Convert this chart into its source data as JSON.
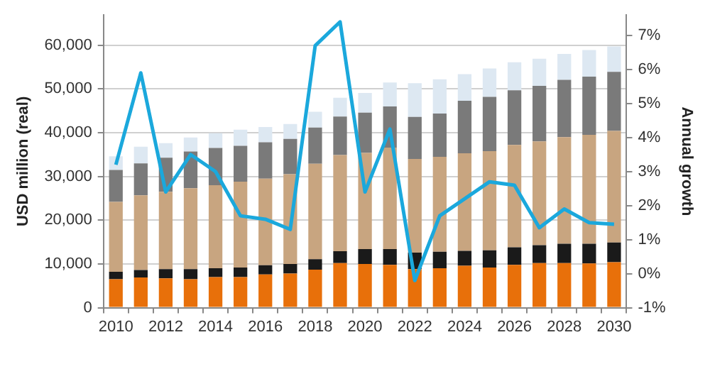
{
  "chart_data": {
    "type": "bar",
    "stacked": true,
    "ylabel": "USD million (real)",
    "y2label": "Annual growth",
    "categories": [
      "2010",
      null,
      "2012",
      null,
      "2014",
      null,
      "2016",
      null,
      "2018",
      null,
      "2020",
      null,
      "2022",
      null,
      "2024",
      null,
      "2026",
      null,
      "2028",
      null,
      "2030"
    ],
    "ylim": [
      0,
      66900
    ],
    "yticks": [
      {
        "value": 0,
        "label": "0"
      },
      {
        "value": 10000,
        "label": "10,000"
      },
      {
        "value": 20000,
        "label": "20,000"
      },
      {
        "value": 30000,
        "label": "30,000"
      },
      {
        "value": 40000,
        "label": "40,000"
      },
      {
        "value": 50000,
        "label": "50,000"
      },
      {
        "value": 60000,
        "label": "60,000"
      }
    ],
    "y2lim": [
      -1,
      7.6
    ],
    "y2ticks": [
      {
        "value": -1,
        "label": "-1%"
      },
      {
        "value": 0,
        "label": "0%"
      },
      {
        "value": 1,
        "label": "1%"
      },
      {
        "value": 2,
        "label": "2%"
      },
      {
        "value": 3,
        "label": "3%"
      },
      {
        "value": 4,
        "label": "4%"
      },
      {
        "value": 5,
        "label": "5%"
      },
      {
        "value": 6,
        "label": "6%"
      },
      {
        "value": 7,
        "label": "7%"
      }
    ],
    "grid": "y",
    "legend": false,
    "series": [
      {
        "color": "#e8700a",
        "values": [
          6500,
          6900,
          6700,
          6500,
          7000,
          7000,
          7600,
          7800,
          8700,
          10200,
          10000,
          9800,
          8800,
          9000,
          9600,
          9200,
          9800,
          10200,
          10200,
          10100,
          10400
        ]
      },
      {
        "color": "#1a1a1a",
        "values": [
          1700,
          1700,
          2100,
          2300,
          2000,
          2200,
          2100,
          2200,
          2400,
          2700,
          3400,
          3600,
          3800,
          3800,
          3400,
          3900,
          4000,
          4100,
          4400,
          4500,
          4500
        ]
      },
      {
        "color": "#c8a580",
        "values": [
          16000,
          17100,
          17700,
          18500,
          19000,
          19600,
          19800,
          20500,
          21800,
          22000,
          22000,
          23200,
          21400,
          21700,
          22300,
          22700,
          23400,
          23700,
          24400,
          24900,
          25500
        ]
      },
      {
        "color": "#7a7a7a",
        "values": [
          7300,
          7300,
          7800,
          8400,
          8500,
          8200,
          8300,
          8100,
          8300,
          8800,
          9200,
          9400,
          9600,
          9900,
          12000,
          12400,
          12500,
          12700,
          13100,
          13300,
          13500
        ]
      },
      {
        "color": "#dde8f2",
        "values": [
          3100,
          3800,
          3300,
          3200,
          3400,
          3700,
          3500,
          3400,
          3600,
          4300,
          4500,
          5500,
          7700,
          7800,
          6100,
          6500,
          6400,
          6200,
          5900,
          6100,
          5800
        ]
      },
      {
        "type": "line",
        "axis": "y2",
        "color": "#1ba8dc",
        "marker": "none",
        "line_style": "solid",
        "values": [
          3.2,
          5.9,
          2.4,
          3.5,
          3.0,
          1.7,
          1.6,
          1.3,
          6.7,
          7.4,
          2.4,
          4.25,
          -0.2,
          1.7,
          2.2,
          2.7,
          2.6,
          1.35,
          1.9,
          1.5,
          1.45
        ]
      }
    ]
  }
}
